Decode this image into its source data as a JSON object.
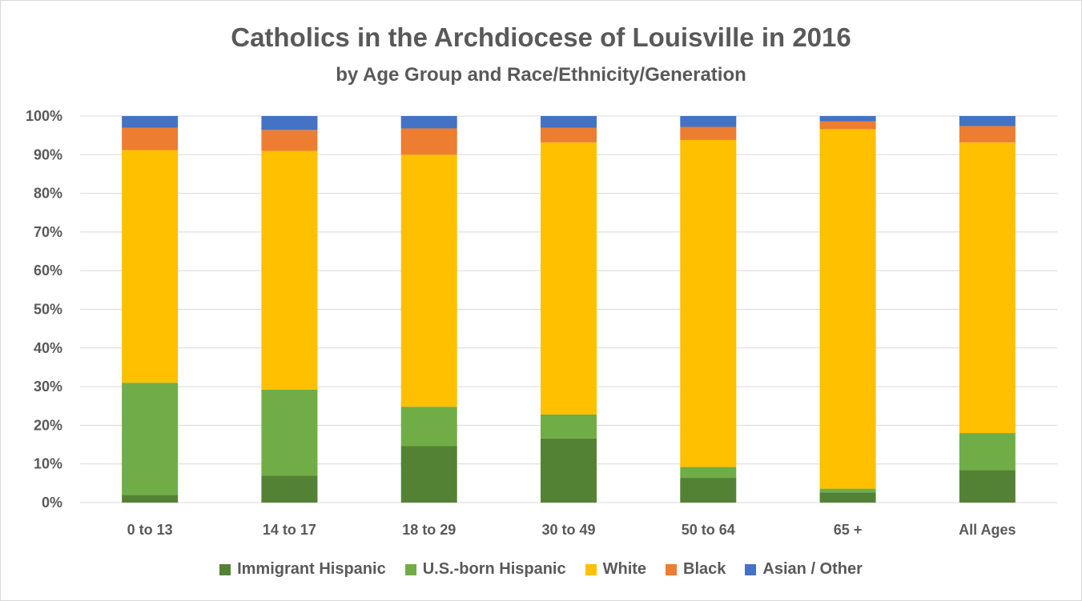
{
  "chart_data": {
    "type": "bar",
    "stacked": true,
    "title": "Catholics in the Archdiocese of Louisville in 2016",
    "subtitle": "by Age Group and Race/Ethnicity/Generation",
    "xlabel": "",
    "ylabel": "",
    "ylim": [
      0,
      100
    ],
    "y_ticks": [
      "0%",
      "10%",
      "20%",
      "30%",
      "40%",
      "50%",
      "60%",
      "70%",
      "80%",
      "90%",
      "100%"
    ],
    "grid": true,
    "legend_position": "bottom",
    "categories": [
      "0 to 13",
      "14 to 17",
      "18 to 29",
      "30 to 49",
      "50 to 64",
      "65 +",
      "All Ages"
    ],
    "series": [
      {
        "name": "Immigrant Hispanic",
        "color": "#548235",
        "values": [
          2,
          7,
          14.6,
          16.6,
          6.4,
          2.6,
          8.4
        ]
      },
      {
        "name": "U.S.-born Hispanic",
        "color": "#70ad47",
        "values": [
          29,
          22.2,
          10.2,
          6.2,
          2.8,
          1.0,
          9.6
        ]
      },
      {
        "name": "White",
        "color": "#ffc000",
        "values": [
          60.2,
          61.8,
          65.2,
          70.4,
          84.6,
          93.0,
          75.2
        ]
      },
      {
        "name": "Black",
        "color": "#ed7d31",
        "values": [
          5.8,
          5.4,
          6.8,
          3.8,
          3.4,
          2.0,
          4.2
        ]
      },
      {
        "name": "Asian / Other",
        "color": "#4472c4",
        "values": [
          3.0,
          3.6,
          3.2,
          3.0,
          2.8,
          1.4,
          2.6
        ]
      }
    ]
  }
}
